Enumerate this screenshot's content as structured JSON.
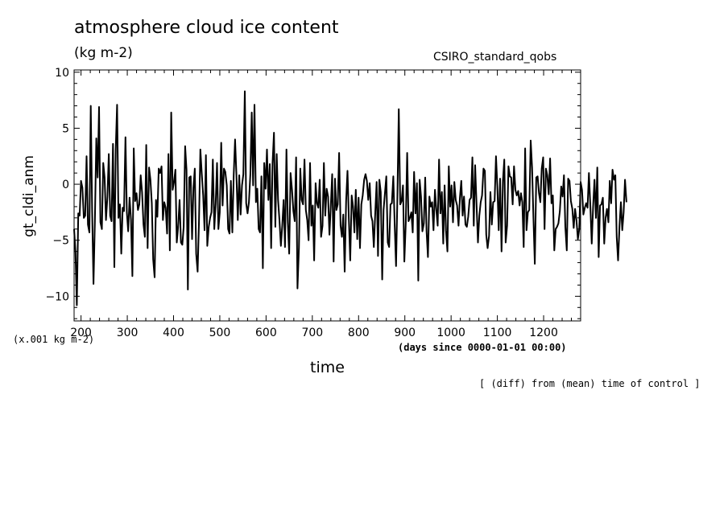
{
  "header": {
    "title": "atmosphere cloud ice content",
    "units": "(kg m-2)",
    "run_name": "CSIRO_standard_qobs"
  },
  "footer": {
    "scale_note": "(x.001 kg m-2)",
    "x_units": "(days since 0000-01-01 00:00)",
    "operation_note": "[ (diff) from (mean) time of control ]"
  },
  "chart_data": {
    "type": "line",
    "xlabel": "time",
    "ylabel": "gt_cldi_anm",
    "xlim": [
      185,
      1280
    ],
    "ylim": [
      -12.2,
      10.2
    ],
    "x_ticks": [
      200,
      300,
      400,
      500,
      600,
      700,
      800,
      900,
      1000,
      1100,
      1200
    ],
    "x_tick_labels": [
      "200",
      "300",
      "400",
      "500",
      "600",
      "700",
      "800",
      "900",
      "1000",
      "1100",
      "1200"
    ],
    "y_ticks": [
      -10,
      -5,
      0,
      5,
      10
    ],
    "y_tick_labels": [
      "−10",
      "−5",
      "0",
      "5",
      "10"
    ],
    "grid": false,
    "color": "#000000",
    "series": [
      {
        "x_start": 185,
        "x_step": 3,
        "values": [
          -4.0,
          -6.0,
          -10.8,
          -2.6,
          -2.8,
          0.3,
          -0.3,
          -3.0,
          -2.8,
          2.5,
          -3.6,
          -4.3,
          7.0,
          -2.3,
          -8.9,
          -3.4,
          4.1,
          0.6,
          6.9,
          -3.4,
          -4.0,
          1.9,
          0.6,
          -3.2,
          -1.1,
          2.7,
          -2.8,
          -3.3,
          3.6,
          -7.4,
          3.1,
          7.1,
          -3.0,
          -1.8,
          -6.2,
          -2.1,
          -2.4,
          4.2,
          -2.5,
          -4.2,
          -1.2,
          -3.2,
          -8.2,
          3.2,
          -1.5,
          -0.8,
          -2.3,
          -1.8,
          0.8,
          -0.7,
          -3.6,
          -4.7,
          3.5,
          -5.7,
          1.5,
          0.4,
          -1.7,
          -6.7,
          -8.3,
          -1.4,
          -2.9,
          1.4,
          1.0,
          1.6,
          -3.2,
          -1.6,
          -2.1,
          -4.4,
          2.7,
          -5.9,
          6.4,
          -0.5,
          0.2,
          1.3,
          -5.2,
          -3.8,
          -1.4,
          -5.2,
          -5.4,
          -3.8,
          3.4,
          1.3,
          -9.4,
          0.6,
          0.7,
          -4.9,
          -0.3,
          1.4,
          -6.2,
          -7.8,
          -3.3,
          3.1,
          1.0,
          -1.0,
          -4.1,
          2.6,
          -5.5,
          -3.8,
          -3.0,
          -2.5,
          2.2,
          -4.0,
          -1.8,
          1.9,
          -4.0,
          -2.5,
          3.7,
          -1.9,
          1.4,
          1.1,
          -0.1,
          -4.0,
          -4.4,
          0.3,
          -4.3,
          0.8,
          4.0,
          0.8,
          -3.2,
          0.8,
          -2.7,
          -0.1,
          0.9,
          8.3,
          -1.7,
          -2.6,
          -1.6,
          0.9,
          6.4,
          -0.1,
          7.1,
          -1.6,
          -0.4,
          -4.0,
          -4.3,
          0.7,
          -7.5,
          1.9,
          -0.4,
          3.1,
          -1.4,
          1.8,
          -5.7,
          1.8,
          4.6,
          -3.8,
          2.7,
          -1.4,
          -3.2,
          -5.5,
          -3.7,
          -1.4,
          -5.6,
          3.1,
          -3.4,
          -6.2,
          1.0,
          -0.5,
          -2.4,
          -3.3,
          2.4,
          -9.3,
          -5.7,
          1.4,
          -1.4,
          -1.8,
          2.2,
          -2.3,
          -3.2,
          -5.0,
          1.9,
          -3.7,
          -1.9,
          -6.8,
          0.1,
          -1.7,
          -2.1,
          0.4,
          -4.7,
          -3.7,
          1.9,
          -2.8,
          -0.4,
          -1.1,
          -4.5,
          -1.9,
          0.9,
          -6.9,
          0.5,
          -2.3,
          -1.8,
          2.8,
          -3.7,
          -4.7,
          -2.7,
          -7.8,
          -1.5,
          1.2,
          -3.1,
          -6.8,
          -1.0,
          -2.0,
          -4.3,
          -0.5,
          -4.9,
          -1.2,
          -5.7,
          -1.8,
          -1.0,
          0.4,
          0.9,
          0.3,
          -1.4,
          0.1,
          -2.8,
          -3.3,
          -5.6,
          -2.5,
          0.2,
          -6.4,
          0.4,
          -0.7,
          -8.5,
          -2.3,
          -0.8,
          0.7,
          -5.2,
          -5.6,
          -1.8,
          -1.7,
          0.7,
          -3.6,
          -7.3,
          -1.0,
          6.7,
          -1.8,
          -1.5,
          -0.1,
          -6.9,
          -3.4,
          2.8,
          -3.3,
          -3.0,
          -2.5,
          -4.3,
          1.1,
          -2.6,
          0.1,
          -8.6,
          0.4,
          -1.1,
          -4.2,
          -3.5,
          0.6,
          -4.2,
          -6.5,
          -1.1,
          -2.0,
          -1.6,
          -4.1,
          -0.5,
          -2.3,
          -3.7,
          2.2,
          -2.6,
          -0.7,
          -5.3,
          -0.1,
          -4.1,
          -6.0,
          1.6,
          -2.0,
          -0.1,
          -3.4,
          0.2,
          -1.4,
          -1.9,
          -3.7,
          -1.2,
          0.3,
          -2.8,
          -1.1,
          -3.6,
          -3.8,
          -2.9,
          -1.4,
          -1.2,
          2.4,
          -3.7,
          1.7,
          -1.9,
          -5.2,
          -2.8,
          -1.6,
          -1.0,
          1.4,
          1.2,
          -4.5,
          -5.7,
          -4.6,
          -0.7,
          -3.6,
          -1.6,
          -1.5,
          2.5,
          -0.2,
          -4.1,
          0.5,
          -6.0,
          0.3,
          2.2,
          -5.2,
          -3.7,
          1.6,
          0.7,
          0.6,
          -1.8,
          1.6,
          -0.5,
          -1.0,
          -0.6,
          -1.9,
          -0.8,
          -1.6,
          -5.6,
          3.2,
          -4.1,
          -2.5,
          -2.3,
          3.9,
          1.5,
          -3.0,
          -7.1,
          0.6,
          0.7,
          -0.8,
          -1.6,
          1.4,
          2.4,
          -4.0,
          1.4,
          0.8,
          -0.9,
          2.3,
          -1.7,
          -1.0,
          -5.9,
          -4.0,
          -3.8,
          -3.5,
          -2.4,
          -0.2,
          -1.1,
          0.8,
          -3.8,
          -5.9,
          0.5,
          0.3,
          -1.5,
          -2.2,
          -3.9,
          -2.2,
          -3.2,
          -4.9,
          -4.0,
          0.2,
          -0.5,
          -2.7,
          -2.1,
          -1.7,
          -2.1,
          1.0,
          -2.0,
          -5.3,
          -2.0,
          0.4,
          -3.0,
          1.5,
          -6.5,
          -1.9,
          -1.8,
          -1.2,
          -5.3,
          -3.0,
          -2.2,
          -3.4,
          0.3,
          -1.7,
          1.3,
          0.4,
          0.8,
          -4.7,
          -6.8,
          -3.7,
          -1.6,
          -4.1,
          -2.5,
          0.4,
          -1.6
        ]
      }
    ]
  }
}
